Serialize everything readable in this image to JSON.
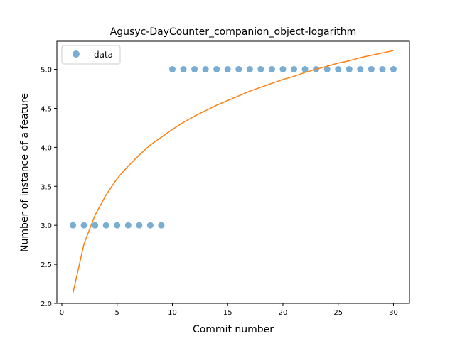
{
  "chart_data": {
    "type": "scatter",
    "title": "Agusyc-DayCounter_companion_object-logarithm",
    "xlabel": "Commit number",
    "ylabel": "Number of instance of a feature",
    "xlim": [
      -0.45,
      31.45
    ],
    "ylim": [
      2.0,
      5.36
    ],
    "xticks": [
      0,
      5,
      10,
      15,
      20,
      25,
      30
    ],
    "yticks": [
      2.0,
      2.5,
      3.0,
      3.5,
      4.0,
      4.5,
      5.0
    ],
    "xtick_labels": [
      "0",
      "5",
      "10",
      "15",
      "20",
      "25",
      "30"
    ],
    "ytick_labels": [
      "2.0",
      "2.5",
      "3.0",
      "3.5",
      "4.0",
      "4.5",
      "5.0"
    ],
    "grid": false,
    "legend": {
      "position": "top-left",
      "entries": [
        "data"
      ]
    },
    "series": [
      {
        "name": "data",
        "kind": "scatter",
        "color": "#1f77b4",
        "x": [
          1,
          2,
          3,
          4,
          5,
          6,
          7,
          8,
          9,
          10,
          11,
          12,
          13,
          14,
          15,
          16,
          17,
          18,
          19,
          20,
          21,
          22,
          23,
          24,
          25,
          26,
          27,
          28,
          29,
          30
        ],
        "y": [
          3,
          3,
          3,
          3,
          3,
          3,
          3,
          3,
          3,
          5,
          5,
          5,
          5,
          5,
          5,
          5,
          5,
          5,
          5,
          5,
          5,
          5,
          5,
          5,
          5,
          5,
          5,
          5,
          5,
          5
        ]
      },
      {
        "kind": "line",
        "color": "#ff7f0e",
        "x": [
          1,
          2,
          3,
          4,
          5,
          6,
          7,
          8,
          9,
          10,
          11,
          12,
          13,
          14,
          15,
          16,
          17,
          18,
          19,
          20,
          21,
          22,
          23,
          24,
          25,
          26,
          27,
          28,
          29,
          30
        ],
        "y": [
          2.13,
          2.76,
          3.13,
          3.39,
          3.6,
          3.76,
          3.9,
          4.03,
          4.13,
          4.23,
          4.32,
          4.4,
          4.47,
          4.54,
          4.6,
          4.66,
          4.72,
          4.77,
          4.82,
          4.87,
          4.91,
          4.96,
          5.0,
          5.04,
          5.08,
          5.11,
          5.15,
          5.18,
          5.21,
          5.24
        ]
      }
    ]
  }
}
